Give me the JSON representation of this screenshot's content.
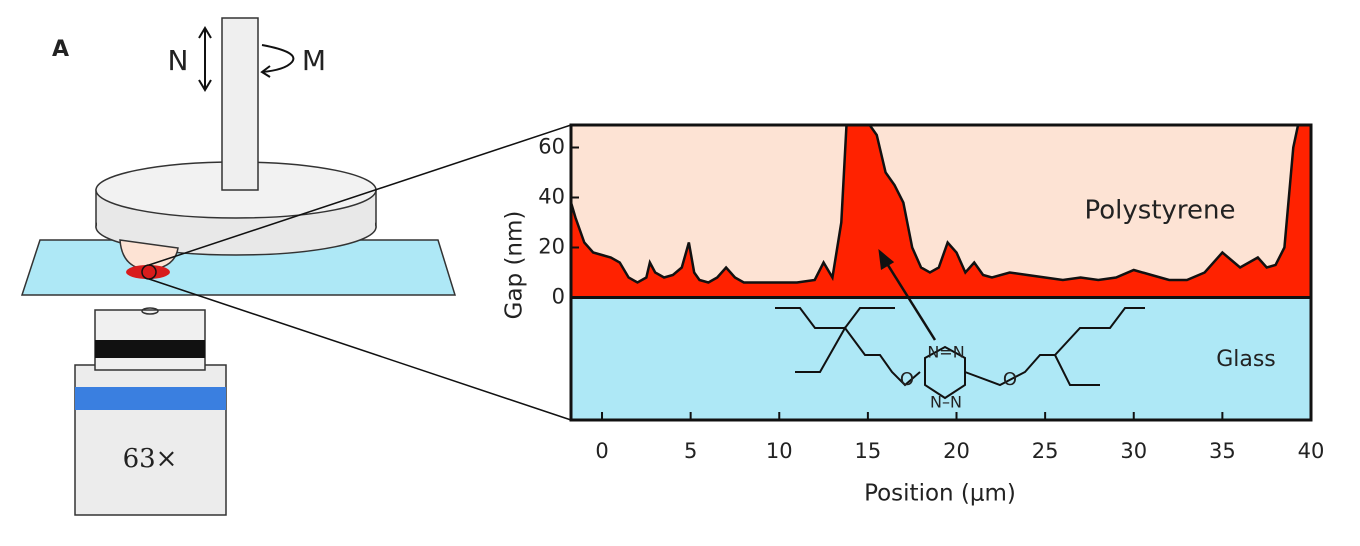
{
  "diagram": {
    "panel_label": "A",
    "normal_force_label": "N",
    "torque_label": "M",
    "objective_label": "63×"
  },
  "molecule": {
    "top_ring": "N=N",
    "bottom_ring": "N–N",
    "left_oxygen": "O",
    "right_oxygen": "O"
  },
  "chart_data": {
    "type": "area",
    "xlabel": "Position (μm)",
    "ylabel": "Gap (nm)",
    "annotations": [
      "Polystyrene",
      "Glass"
    ],
    "x": [
      -1.75,
      -1.5,
      -1,
      -0.5,
      0,
      0.5,
      1,
      1.5,
      2,
      2.5,
      2.7,
      3,
      3.5,
      4,
      4.5,
      4.9,
      5.2,
      5.5,
      6,
      6.5,
      7,
      7.5,
      8,
      9,
      10,
      11,
      12,
      12.5,
      13,
      13.5,
      13.8,
      14,
      15,
      15.5,
      16,
      16.5,
      17,
      17.5,
      18,
      18.5,
      19,
      19.5,
      20,
      20.5,
      21,
      21.5,
      22,
      23,
      24,
      25,
      26,
      27,
      28,
      29,
      30,
      31,
      32,
      33,
      34,
      35,
      35.5,
      36,
      37,
      37.5,
      38,
      38.5,
      39,
      39.3,
      40
    ],
    "values": [
      38,
      32,
      22,
      18,
      17,
      16,
      14,
      8,
      6,
      8,
      14,
      10,
      8,
      9,
      12,
      22,
      10,
      7,
      6,
      8,
      12,
      8,
      6,
      6,
      6,
      6,
      7,
      14,
      8,
      30,
      70,
      70,
      70,
      65,
      50,
      45,
      38,
      20,
      12,
      10,
      12,
      22,
      18,
      10,
      14,
      9,
      8,
      10,
      9,
      8,
      7,
      8,
      7,
      8,
      11,
      9,
      7,
      7,
      10,
      18,
      15,
      12,
      16,
      12,
      13,
      20,
      60,
      70,
      70
    ],
    "color": "#ff2200",
    "polymer_color": "#fde3d4",
    "glass_color": "#aee8f6",
    "xlim": [
      -1.75,
      40
    ],
    "ylim": [
      -49,
      69
    ],
    "xticks": [
      0,
      5,
      10,
      15,
      20,
      25,
      30,
      35,
      40
    ],
    "yticks": [
      0,
      20,
      40,
      60
    ]
  }
}
